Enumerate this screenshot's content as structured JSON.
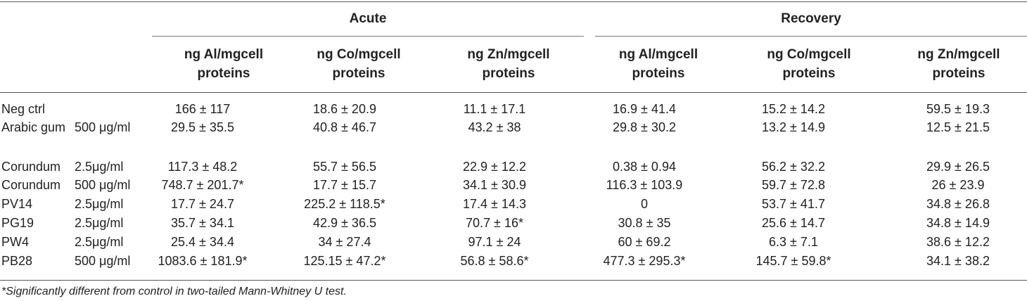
{
  "table": {
    "groups": [
      "Acute",
      "Recovery"
    ],
    "columns": [
      "ng Al/mgcell proteins",
      "ng Co/mgcell proteins",
      "ng Zn/mgcell proteins",
      "ng Al/mgcell proteins",
      "ng Co/mgcell proteins",
      "ng Zn/mgcell proteins"
    ],
    "rows": [
      {
        "name": "Neg ctrl",
        "conc": "",
        "values": [
          "166 ± 117",
          "18.6 ± 20.9",
          "11.1 ± 17.1",
          "16.9 ± 41.4",
          "15.2 ± 14.2",
          "59.5 ± 19.3"
        ]
      },
      {
        "name": "Arabic gum",
        "conc": "500 μg/ml",
        "values": [
          "29.5 ± 35.5",
          "40.8 ± 46.7",
          "43.2 ± 38",
          "29.8 ± 30.2",
          "13.2 ± 14.9",
          "12.5 ± 21.5"
        ]
      },
      {
        "name": "Corundum",
        "conc": "2.5μg/ml",
        "values": [
          "117.3 ± 48.2",
          "55.7 ± 56.5",
          "22.9 ± 12.2",
          "0.38 ± 0.94",
          "56.2 ± 32.2",
          "29.9 ± 26.5"
        ]
      },
      {
        "name": "Corundum",
        "conc": "500 μg/ml",
        "values": [
          "748.7 ± 201.7*",
          "17.7 ± 15.7",
          "34.1 ± 30.9",
          "116.3 ± 103.9",
          "59.7 ± 72.8",
          "26 ± 23.9"
        ]
      },
      {
        "name": "PV14",
        "conc": "2.5μg/ml",
        "values": [
          "17.7 ± 24.7",
          "225.2 ± 118.5*",
          "17.4 ± 14.3",
          "0",
          "53.7 ± 41.7",
          "34.8 ± 26.8"
        ]
      },
      {
        "name": "PG19",
        "conc": "2.5μg/ml",
        "values": [
          "35.7 ± 34.1",
          "42.9 ± 36.5",
          "70.7 ± 16*",
          "30.8 ± 35",
          "25.6 ± 14.7",
          "34.8 ± 14.9"
        ]
      },
      {
        "name": "PW4",
        "conc": "2.5μg/ml",
        "values": [
          "25.4 ± 34.4",
          "34 ± 27.4",
          "97.1 ± 24",
          "60 ± 69.2",
          "6.3 ± 7.1",
          "38.6 ± 12.2"
        ]
      },
      {
        "name": "PB28",
        "conc": "500 μg/ml",
        "values": [
          "1083.6 ± 181.9*",
          "125.15 ± 47.2*",
          "56.8 ± 58.6*",
          "477.3 ± 295.3*",
          "145.7 ± 59.8*",
          "34.1 ± 38.2"
        ]
      }
    ],
    "footnote": "*Significantly different from control in two-tailed Mann-Whitney U test."
  }
}
